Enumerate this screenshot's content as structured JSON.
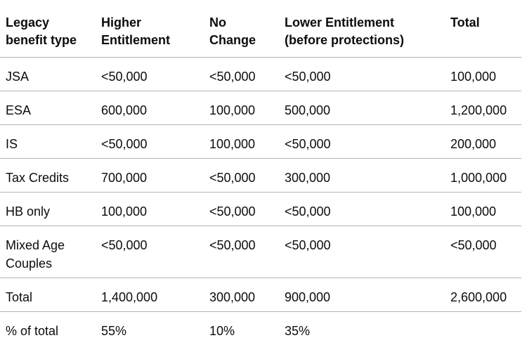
{
  "table": {
    "headers": [
      "Legacy benefit type",
      "Higher Entitlement",
      "No Change",
      "Lower Entitlement (before protections)",
      "Total"
    ],
    "headers_lines": [
      [
        "Legacy",
        "benefit type"
      ],
      [
        "Higher",
        "Entitlement"
      ],
      [
        "No",
        "Change"
      ],
      [
        "Lower Entitlement",
        "(before protections)"
      ],
      [
        "Total",
        ""
      ]
    ],
    "rows": [
      [
        "JSA",
        "<50,000",
        "<50,000",
        "<50,000",
        "100,000"
      ],
      [
        "ESA",
        "600,000",
        "100,000",
        "500,000",
        "1,200,000"
      ],
      [
        "IS",
        "<50,000",
        "100,000",
        "<50,000",
        "200,000"
      ],
      [
        "Tax Credits",
        "700,000",
        "<50,000",
        "300,000",
        "1,000,000"
      ],
      [
        "HB only",
        "100,000",
        "<50,000",
        "<50,000",
        "100,000"
      ],
      [
        "Mixed Age Couples",
        "<50,000",
        "<50,000",
        "<50,000",
        "<50,000"
      ],
      [
        "Total",
        "1,400,000",
        "300,000",
        "900,000",
        "2,600,000"
      ],
      [
        "% of total",
        "55%",
        "10%",
        "35%",
        ""
      ]
    ]
  },
  "colors": {
    "text": "#0b0c0c",
    "border": "#b1b4b6",
    "background": "#ffffff"
  }
}
